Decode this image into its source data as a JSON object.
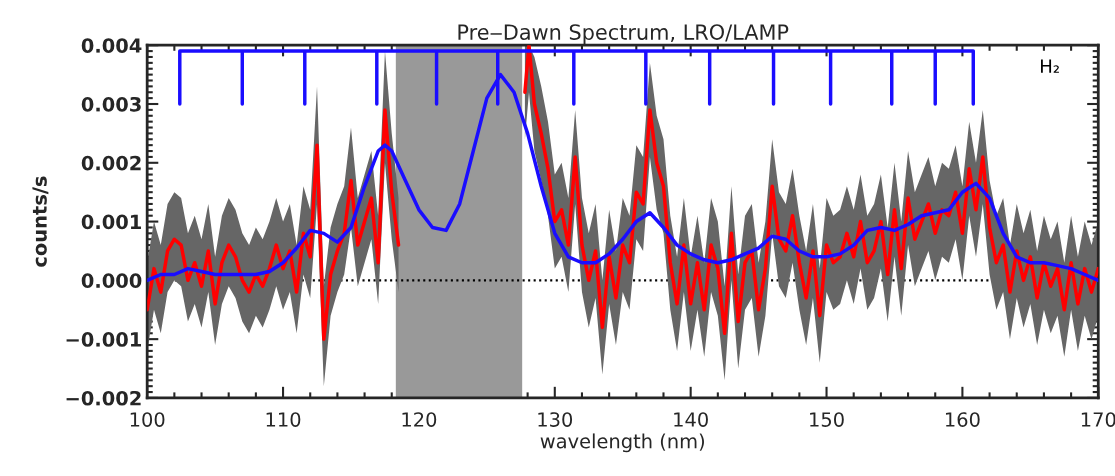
{
  "chart_data": {
    "type": "line",
    "title": "Pre‒Dawn Spectrum, LRO/LAMP",
    "xlabel": "wavelength (nm)",
    "ylabel": "counts/s",
    "xlim": [
      100,
      170
    ],
    "xticks": [
      100,
      110,
      120,
      130,
      140,
      150,
      160,
      170
    ],
    "ylim": [
      -0.002,
      0.004
    ],
    "yticks": [
      {
        "value": -0.002,
        "label": "−0.002"
      },
      {
        "value": -0.001,
        "label": "−0.001"
      },
      {
        "value": 0,
        "label": "0.000"
      },
      {
        "value": 0.001,
        "label": "0.001"
      },
      {
        "value": 0.002,
        "label": "0.002"
      },
      {
        "value": 0.003,
        "label": "0.003"
      },
      {
        "value": 0.004,
        "label": "0.004"
      }
    ],
    "grid": false,
    "legend": false,
    "bands": [
      {
        "axis": "x",
        "from": 118.3,
        "to": 127.6,
        "color": "#999999"
      }
    ],
    "ref_lines": [
      {
        "axis": "y",
        "value": 0,
        "color": "#000000",
        "line_style": "dotted"
      }
    ],
    "series": [
      {
        "color": "#ff0000",
        "x": [
          100,
          100.5,
          101,
          101.5,
          102,
          102.5,
          103,
          103.5,
          104,
          104.5,
          105,
          105.5,
          106,
          106.5,
          107,
          107.5,
          108,
          108.5,
          109,
          109.5,
          110,
          110.5,
          111,
          111.5,
          112,
          112.5,
          113,
          113.5,
          114,
          114.5,
          115,
          115.5,
          116,
          116.5,
          117,
          117.5,
          118,
          118.5,
          123,
          127.8,
          128.1,
          128.5,
          129,
          129.5,
          130,
          130.5,
          131,
          131.5,
          132,
          132.5,
          133,
          133.5,
          134,
          134.5,
          135,
          135.5,
          136,
          136.5,
          137,
          137.5,
          138,
          138.5,
          139,
          139.5,
          140,
          140.5,
          141,
          141.5,
          142,
          142.5,
          143,
          143.5,
          144,
          144.5,
          145,
          145.5,
          146,
          146.5,
          147,
          147.5,
          148,
          148.5,
          149,
          149.5,
          150,
          150.5,
          151,
          151.5,
          152,
          152.5,
          153,
          153.5,
          154,
          154.5,
          155,
          155.5,
          156,
          156.5,
          157,
          157.5,
          158,
          158.5,
          159,
          159.5,
          160,
          160.5,
          161,
          161.5,
          162,
          162.5,
          163,
          163.5,
          164,
          164.5,
          165,
          165.5,
          166,
          166.5,
          167,
          167.5,
          168,
          168.5,
          169,
          169.5,
          170
        ],
        "values": [
          -0.0005,
          0.0002,
          -0.0002,
          0.0005,
          0.0007,
          0.0006,
          0.0,
          0.0003,
          -0.0001,
          0.0005,
          -0.0004,
          0.0003,
          0.0006,
          0.0004,
          0.0,
          -0.0002,
          0.0001,
          -0.0001,
          0.0002,
          0.0006,
          0.0002,
          0.0005,
          -0.0002,
          0.0008,
          0.0004,
          0.0023,
          -0.001,
          0.0001,
          0.0005,
          0.0008,
          0.0017,
          0.0006,
          0.001,
          0.0014,
          0.0003,
          0.0029,
          0.0015,
          0.0006,
          null,
          0.0032,
          0.004,
          0.003,
          0.0025,
          0.0019,
          0.001,
          0.0012,
          0.0006,
          0.0021,
          0.0006,
          0.0,
          0.0005,
          -0.0008,
          0.0004,
          -0.0003,
          0.0006,
          0.0003,
          0.0015,
          0.0013,
          0.0029,
          0.002,
          0.0016,
          0.0003,
          -0.0004,
          0.0006,
          -0.0004,
          0.0003,
          -0.0005,
          0.0006,
          0.0002,
          -0.0009,
          0.0008,
          -0.0007,
          0.0003,
          0.0005,
          -0.0005,
          0.0002,
          0.0016,
          0.0007,
          0.0005,
          0.0011,
          0.0003,
          -0.0003,
          0.0005,
          -0.0006,
          0.0006,
          0.0003,
          0.0004,
          0.0008,
          0.0004,
          0.001,
          0.0003,
          0.0005,
          0.001,
          0.0001,
          0.0012,
          0.0002,
          0.0014,
          0.0007,
          0.001,
          0.0013,
          0.0008,
          0.0012,
          0.0011,
          0.0015,
          0.0008,
          0.0019,
          0.0012,
          0.0021,
          0.0009,
          0.0003,
          0.0006,
          -0.0002,
          0.0005,
          0.0,
          0.0004,
          -0.0003,
          0.0003,
          -0.0001,
          0.0002,
          -0.0005,
          0.0003,
          -0.0004,
          0.0002,
          -0.0002,
          0.0002
        ],
        "lower": [
          -0.0012,
          -0.0005,
          -0.0009,
          -0.0002,
          0.0,
          -0.0001,
          -0.0007,
          -0.0004,
          -0.0008,
          -0.0002,
          -0.0011,
          -0.0004,
          -0.0001,
          -0.0003,
          -0.0007,
          -0.0009,
          -0.0006,
          -0.0008,
          -0.0005,
          -0.0001,
          -0.0005,
          -0.0002,
          -0.0009,
          0.0001,
          -0.0003,
          0.0013,
          -0.0018,
          -0.0006,
          -0.0002,
          0.0001,
          0.0009,
          -0.0001,
          0.0003,
          0.0007,
          -0.0004,
          0.002,
          0.0007,
          -0.0002,
          null,
          0.0024,
          0.0032,
          0.0022,
          0.0017,
          0.0011,
          0.0002,
          0.0004,
          -0.0002,
          0.0013,
          -0.0002,
          -0.0008,
          -0.0003,
          -0.0016,
          -0.0004,
          -0.0011,
          -0.0002,
          -0.0005,
          0.0007,
          0.0005,
          0.0021,
          0.0012,
          0.0008,
          -0.0005,
          -0.0012,
          -0.0002,
          -0.0012,
          -0.0005,
          -0.0013,
          -0.0002,
          -0.0006,
          -0.0017,
          0.0,
          -0.0015,
          -0.0005,
          -0.0003,
          -0.0013,
          -0.0006,
          0.0008,
          -0.0001,
          -0.0003,
          0.0003,
          -0.0005,
          -0.0011,
          -0.0003,
          -0.0014,
          -0.0002,
          -0.0005,
          -0.0004,
          0.0,
          -0.0004,
          0.0002,
          -0.0005,
          -0.0003,
          0.0002,
          -0.0007,
          0.0004,
          -0.0006,
          0.0006,
          -0.0001,
          0.0002,
          0.0005,
          0.0,
          0.0004,
          0.0003,
          0.0007,
          0.0,
          0.0011,
          0.0004,
          0.0013,
          0.0001,
          -0.0005,
          -0.0002,
          -0.001,
          -0.0003,
          -0.0008,
          -0.0004,
          -0.0011,
          -0.0005,
          -0.0009,
          -0.0006,
          -0.0013,
          -0.0005,
          -0.0012,
          -0.0006,
          -0.001,
          -0.0006
        ],
        "upper": [
          0.0003,
          0.001,
          0.0006,
          0.0013,
          0.0015,
          0.0014,
          0.0008,
          0.0011,
          0.0007,
          0.0013,
          0.0004,
          0.0011,
          0.0014,
          0.0012,
          0.0008,
          0.0006,
          0.0009,
          0.0007,
          0.001,
          0.0014,
          0.001,
          0.0013,
          0.0006,
          0.0016,
          0.0012,
          0.0033,
          -0.0001,
          0.0009,
          0.0013,
          0.0016,
          0.0026,
          0.0014,
          0.0018,
          0.0022,
          0.0011,
          0.0039,
          0.0025,
          0.0014,
          null,
          0.004,
          0.004,
          0.0038,
          0.0033,
          0.0027,
          0.0018,
          0.002,
          0.0014,
          0.0029,
          0.0014,
          0.0008,
          0.0013,
          0.0,
          0.0012,
          0.0005,
          0.0014,
          0.0011,
          0.0023,
          0.0021,
          0.0037,
          0.0028,
          0.0024,
          0.0011,
          0.0004,
          0.0014,
          0.0004,
          0.0011,
          0.0003,
          0.0014,
          0.001,
          -0.0001,
          0.0016,
          0.0001,
          0.0011,
          0.0013,
          0.0003,
          0.001,
          0.0024,
          0.0015,
          0.0013,
          0.0019,
          0.0011,
          0.0005,
          0.0013,
          0.0002,
          0.0014,
          0.0011,
          0.0012,
          0.0016,
          0.0012,
          0.0018,
          0.0011,
          0.0013,
          0.0018,
          0.0009,
          0.002,
          0.001,
          0.0022,
          0.0015,
          0.0018,
          0.0021,
          0.0016,
          0.002,
          0.0019,
          0.0023,
          0.0016,
          0.0027,
          0.002,
          0.0029,
          0.0017,
          0.0011,
          0.0014,
          0.0006,
          0.0013,
          0.0008,
          0.0012,
          0.0005,
          0.0011,
          0.0007,
          0.001,
          0.0003,
          0.0011,
          0.0004,
          0.001,
          0.0006,
          0.001
        ]
      },
      {
        "color": "#1a0dff",
        "x": [
          100,
          101,
          102,
          103,
          104,
          105,
          106,
          107,
          108,
          109,
          110,
          111,
          112,
          113,
          114,
          115,
          116,
          117,
          117.5,
          118,
          119,
          120,
          121,
          122,
          123,
          124,
          125,
          126,
          127,
          128,
          129,
          130,
          131,
          132,
          133,
          134,
          135,
          136,
          137,
          138,
          139,
          140,
          141,
          142,
          143,
          144,
          145,
          146,
          147,
          148,
          149,
          150,
          151,
          152,
          153,
          154,
          155,
          156,
          157,
          158,
          159,
          160,
          161,
          162,
          163,
          164,
          165,
          166,
          167,
          168,
          169,
          170
        ],
        "values": [
          0.0,
          0.0001,
          0.0001,
          0.0002,
          0.00015,
          0.0001,
          0.0001,
          0.0001,
          0.0001,
          0.00015,
          0.0003,
          0.00055,
          0.00085,
          0.0008,
          0.00065,
          0.0009,
          0.0016,
          0.0022,
          0.0023,
          0.0022,
          0.0017,
          0.0012,
          0.0009,
          0.00085,
          0.0013,
          0.0022,
          0.0031,
          0.0035,
          0.0032,
          0.0025,
          0.0016,
          0.0008,
          0.0004,
          0.0003,
          0.0003,
          0.00045,
          0.0007,
          0.001,
          0.00115,
          0.0009,
          0.0006,
          0.00045,
          0.00035,
          0.0003,
          0.00035,
          0.00045,
          0.00055,
          0.00075,
          0.0007,
          0.0005,
          0.0004,
          0.0004,
          0.00045,
          0.0006,
          0.00085,
          0.0009,
          0.00085,
          0.00095,
          0.0011,
          0.00115,
          0.0012,
          0.0015,
          0.00165,
          0.0014,
          0.0008,
          0.0004,
          0.0003,
          0.0003,
          0.00025,
          0.0002,
          0.0001,
          0.0
        ]
      },
      {
        "color": "#1a0dff",
        "name": "H₂",
        "x": [
          102.4,
          102.4,
          102.4,
          107,
          107,
          107,
          111.6,
          111.6,
          111.6,
          116.9,
          116.9,
          116.9,
          121.3,
          121.3,
          121.3,
          125.8,
          125.8,
          125.8,
          131.4,
          131.4,
          131.4,
          136.7,
          136.7,
          136.7,
          141.4,
          141.4,
          141.4,
          146.1,
          146.1,
          146.1,
          150.3,
          150.3,
          150.3,
          154.8,
          154.8,
          154.8,
          158,
          158,
          158,
          160.8,
          160.8,
          160.8
        ],
        "values": [
          0.0039,
          0.003,
          0.0039,
          0.0039,
          0.003,
          0.0039,
          0.0039,
          0.003,
          0.0039,
          0.0039,
          0.003,
          0.0039,
          0.0039,
          0.003,
          0.0039,
          0.0039,
          0.003,
          0.0039,
          0.0039,
          0.003,
          0.0039,
          0.0039,
          0.003,
          0.0039,
          0.0039,
          0.003,
          0.0039,
          0.0039,
          0.003,
          0.0039,
          0.0039,
          0.003,
          0.0039,
          0.0039,
          0.003,
          0.0039,
          0.0039,
          0.003,
          0.0039,
          0.0039,
          0.003,
          0.0039
        ]
      }
    ]
  }
}
